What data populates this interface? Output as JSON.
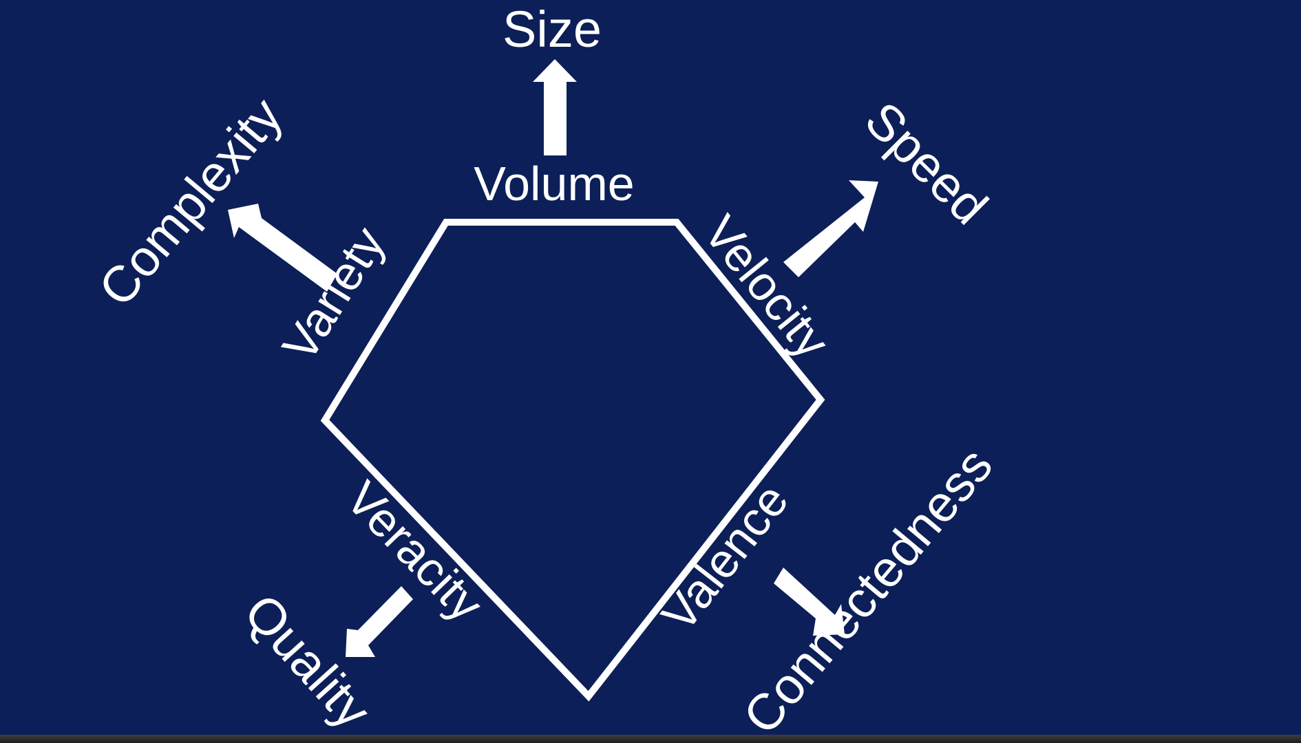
{
  "diagram": {
    "colors": {
      "background": "#0c1f58",
      "foreground": "#ffffff"
    },
    "edges": {
      "volume": "Volume",
      "velocity": "Velocity",
      "valence": "Valence",
      "veracity": "Veracity",
      "variety": "Variety"
    },
    "outcomes": {
      "size": "Size",
      "speed": "Speed",
      "connectedness": "Connectedness",
      "quality": "Quality",
      "complexity": "Complexity"
    }
  }
}
